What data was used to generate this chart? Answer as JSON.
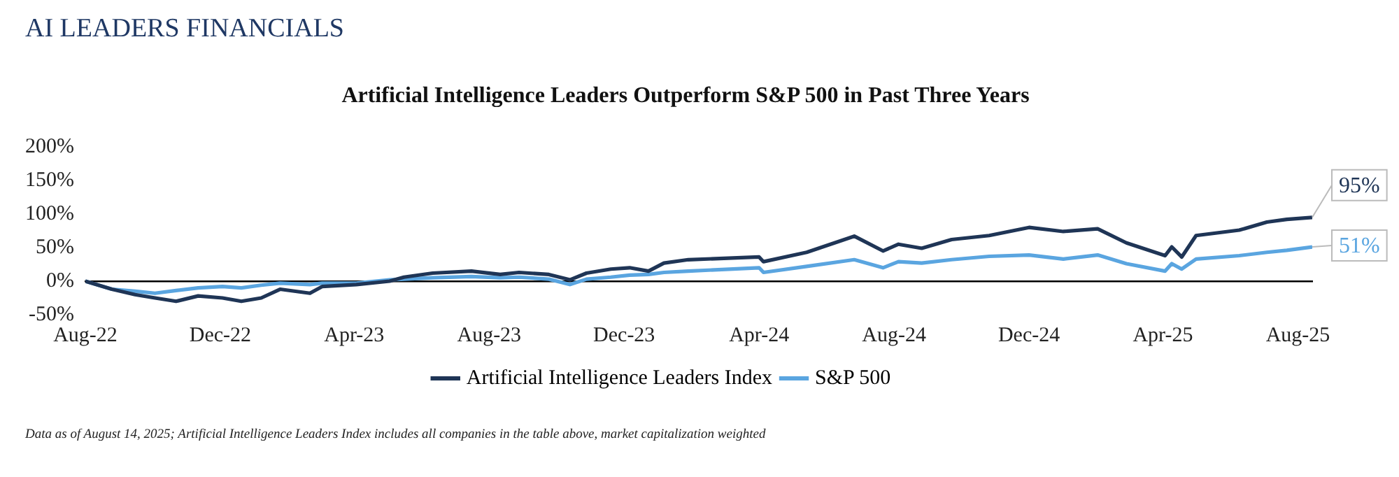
{
  "chart_data": {
    "type": "line",
    "title": "AI LEADERS FINANCIALS",
    "subtitle": "Artificial Intelligence Leaders Outperform S&P 500 in Past Three Years",
    "x": [
      "2022-08-01",
      "2022-08-25",
      "2022-09-15",
      "2022-10-03",
      "2022-10-22",
      "2022-11-11",
      "2022-12-03",
      "2022-12-20",
      "2023-01-07",
      "2023-01-24",
      "2023-02-20",
      "2023-03-03",
      "2023-04-03",
      "2023-05-03",
      "2023-05-16",
      "2023-06-11",
      "2023-07-16",
      "2023-08-11",
      "2023-08-28",
      "2023-09-24",
      "2023-10-13",
      "2023-10-28",
      "2023-11-19",
      "2023-12-06",
      "2023-12-23",
      "2024-01-06",
      "2024-01-28",
      "2024-04-01",
      "2024-04-05",
      "2024-05-14",
      "2024-06-26",
      "2024-07-22",
      "2024-08-05",
      "2024-08-26",
      "2024-09-22",
      "2024-10-26",
      "2024-12-01",
      "2025-01-01",
      "2025-02-01",
      "2025-02-27",
      "2025-04-03",
      "2025-04-09",
      "2025-04-18",
      "2025-05-01",
      "2025-06-09",
      "2025-07-04",
      "2025-07-22",
      "2025-08-14"
    ],
    "series": [
      {
        "name": "Artificial Intelligence Leaders Index",
        "color": "#1f3556",
        "values": [
          0,
          -12,
          -20,
          -25,
          -30,
          -22,
          -25,
          -30,
          -25,
          -12,
          -18,
          -8,
          -5,
          0,
          6,
          12,
          15,
          10,
          13,
          10,
          2,
          12,
          18,
          20,
          15,
          27,
          32,
          36,
          29,
          43,
          67,
          45,
          55,
          49,
          62,
          68,
          80,
          74,
          78,
          57,
          38,
          51,
          36,
          68,
          76,
          88,
          92,
          95
        ],
        "value_labels": [
          null,
          null,
          null,
          null,
          null,
          null,
          null,
          null,
          null,
          null,
          null,
          null,
          null,
          null,
          null,
          null,
          null,
          null,
          null,
          null,
          null,
          null,
          null,
          null,
          null,
          null,
          null,
          null,
          null,
          null,
          null,
          null,
          null,
          null,
          null,
          null,
          null,
          null,
          null,
          null,
          null,
          null,
          null,
          null,
          null,
          null,
          null,
          "95%"
        ]
      },
      {
        "name": "S&P 500",
        "color": "#5aa5e0",
        "values": [
          0,
          -12,
          -15,
          -18,
          -14,
          -10,
          -8,
          -10,
          -6,
          -3,
          -5,
          -3,
          -3,
          2,
          3,
          5,
          7,
          5,
          6,
          3,
          -5,
          3,
          6,
          9,
          10,
          13,
          15,
          20,
          13,
          22,
          32,
          20,
          29,
          27,
          32,
          37,
          39,
          33,
          39,
          26,
          15,
          26,
          18,
          33,
          38,
          43,
          46,
          51
        ],
        "value_labels": [
          null,
          null,
          null,
          null,
          null,
          null,
          null,
          null,
          null,
          null,
          null,
          null,
          null,
          null,
          null,
          null,
          null,
          null,
          null,
          null,
          null,
          null,
          null,
          null,
          null,
          null,
          null,
          null,
          null,
          null,
          null,
          null,
          null,
          null,
          null,
          null,
          null,
          null,
          null,
          null,
          null,
          null,
          null,
          null,
          null,
          null,
          null,
          "51%"
        ]
      }
    ],
    "xlim": [
      "2022-08-01",
      "2025-08-14"
    ],
    "xticks": [
      {
        "value": "2022-08-01",
        "label": "Aug-22"
      },
      {
        "value": "2022-12-01",
        "label": "Dec-22"
      },
      {
        "value": "2023-04-01",
        "label": "Apr-23"
      },
      {
        "value": "2023-08-01",
        "label": "Aug-23"
      },
      {
        "value": "2023-12-01",
        "label": "Dec-23"
      },
      {
        "value": "2024-04-01",
        "label": "Apr-24"
      },
      {
        "value": "2024-08-01",
        "label": "Aug-24"
      },
      {
        "value": "2024-12-01",
        "label": "Dec-24"
      },
      {
        "value": "2025-04-01",
        "label": "Apr-25"
      },
      {
        "value": "2025-08-01",
        "label": "Aug-25"
      }
    ],
    "ylim": [
      -50,
      200
    ],
    "yticks": [
      {
        "value": -50,
        "label": "-50%"
      },
      {
        "value": 0,
        "label": "0%"
      },
      {
        "value": 50,
        "label": "50%"
      },
      {
        "value": 100,
        "label": "100%"
      },
      {
        "value": 150,
        "label": "150%"
      },
      {
        "value": 200,
        "label": "200%"
      }
    ],
    "grid": false,
    "legend": "bottom",
    "marker": "none",
    "line_style": "solid",
    "annotations": [
      "Data as of August 14, 2025; Artificial Intelligence Leaders Index includes all companies in the table above, market capitalization weighted"
    ]
  }
}
